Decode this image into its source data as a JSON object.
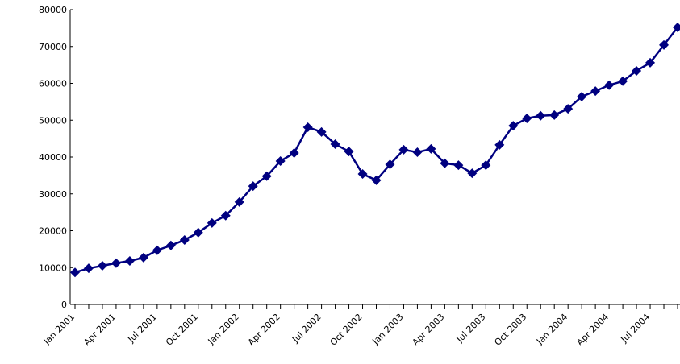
{
  "chart_data": {
    "type": "line",
    "categories": [
      "Jan 2001",
      null,
      null,
      "Apr 2001",
      null,
      null,
      "Jul 2001",
      null,
      null,
      "Oct 2001",
      null,
      null,
      "Jan 2002",
      null,
      null,
      "Apr 2002",
      null,
      null,
      "Jul 2002",
      null,
      null,
      "Oct 2002",
      null,
      null,
      "Jan 2003",
      null,
      null,
      "Apr 2003",
      null,
      null,
      "Jul 2003",
      null,
      null,
      "Oct 2003",
      null,
      null,
      "Jan 2004",
      null,
      null,
      "Apr 2004",
      null,
      null,
      "Jul 2004",
      null,
      null
    ],
    "series": [
      {
        "color": "#000080",
        "values": [
          8700,
          9800,
          10500,
          11200,
          11800,
          12700,
          14700,
          16000,
          17500,
          19500,
          22100,
          24100,
          27800,
          32100,
          34800,
          38900,
          41100,
          48100,
          46800,
          43500,
          41500,
          35400,
          33700,
          38000,
          42000,
          41300,
          42200,
          38300,
          37800,
          35600,
          37800,
          43300,
          48500,
          50500,
          51200,
          51400,
          53100,
          56400,
          57900,
          59500,
          60600,
          63400,
          65600,
          70400,
          75200
        ]
      }
    ],
    "ylim": [
      0,
      80000
    ],
    "yticks": [
      0,
      10000,
      20000,
      30000,
      40000,
      50000,
      60000,
      70000,
      80000
    ]
  }
}
